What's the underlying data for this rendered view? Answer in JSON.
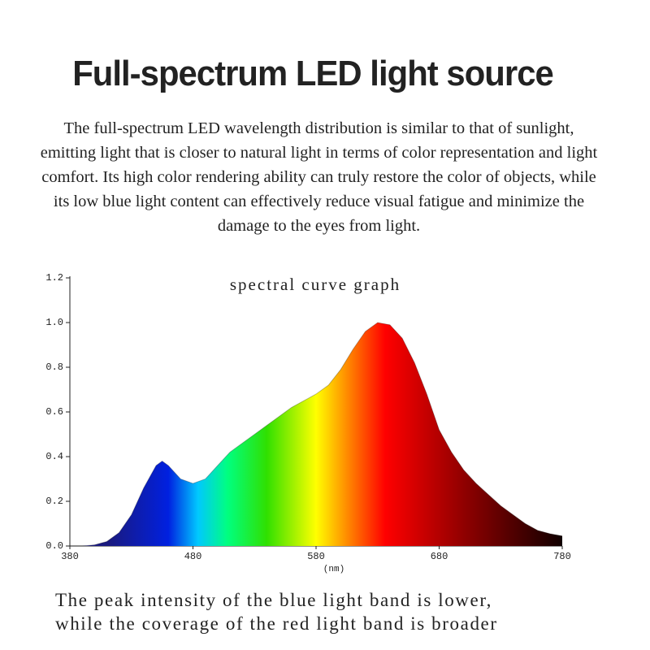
{
  "header": {
    "title": "Full-spectrum LED light source",
    "description": "The full-spectrum LED wavelength distribution is similar to that of sunlight, emitting light that is closer to natural light in terms of color representation and light comfort. Its high color rendering ability can truly restore the color of objects, while its low blue light content can effectively reduce visual fatigue and minimize the damage to the eyes from light."
  },
  "chart_data": {
    "type": "area",
    "title": "spectral curve graph",
    "x_label": "(nm)",
    "x": [
      380,
      390,
      400,
      410,
      420,
      430,
      440,
      450,
      455,
      460,
      470,
      480,
      490,
      500,
      510,
      520,
      530,
      540,
      550,
      560,
      570,
      580,
      590,
      600,
      610,
      620,
      630,
      640,
      650,
      660,
      670,
      680,
      690,
      700,
      710,
      720,
      730,
      740,
      750,
      760,
      770,
      780
    ],
    "values": [
      0,
      0,
      0.005,
      0.02,
      0.06,
      0.14,
      0.26,
      0.36,
      0.38,
      0.36,
      0.3,
      0.28,
      0.3,
      0.36,
      0.42,
      0.46,
      0.5,
      0.54,
      0.58,
      0.62,
      0.65,
      0.68,
      0.72,
      0.79,
      0.88,
      0.96,
      1.0,
      0.99,
      0.93,
      0.82,
      0.68,
      0.52,
      0.42,
      0.34,
      0.28,
      0.23,
      0.18,
      0.14,
      0.1,
      0.07,
      0.055,
      0.045
    ],
    "xlim": [
      380,
      780
    ],
    "ylim": [
      0,
      1.2
    ],
    "xticks": [
      380,
      480,
      580,
      680,
      780
    ],
    "yticks": [
      {
        "value": 0,
        "label": "0.0"
      },
      0.2,
      0.4,
      0.6,
      0.8,
      {
        "value": 1,
        "label": "1.0"
      },
      1.2
    ],
    "color": "#000000"
  },
  "caption": [
    "The peak intensity of the blue light band is lower,",
    "while the coverage of the red light band is broader"
  ]
}
